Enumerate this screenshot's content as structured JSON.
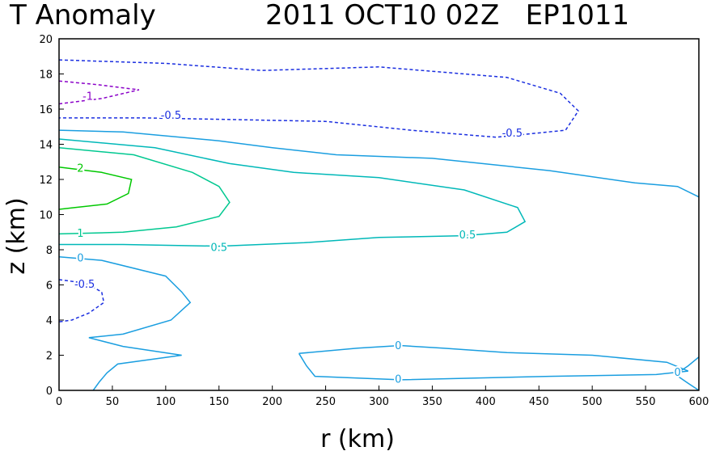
{
  "chart_data": {
    "type": "contour",
    "title_left": "T Anomaly",
    "title_right": "2011 OCT10 02Z   EP1011",
    "xlabel": "r (km)",
    "ylabel": "z (km)",
    "xlim": [
      0,
      600
    ],
    "ylim": [
      0,
      20
    ],
    "xticks": [
      0,
      50,
      100,
      150,
      200,
      250,
      300,
      350,
      400,
      450,
      500,
      550,
      600
    ],
    "yticks": [
      0,
      2,
      4,
      6,
      8,
      10,
      12,
      14,
      16,
      18,
      20
    ],
    "grid": false,
    "colors": {
      "-1": "#8a00c8",
      "-0.5": "#1a2ee0",
      "0": "#1a9ee0",
      "0.5": "#00b8b8",
      "1": "#00c890",
      "2": "#00c800"
    },
    "contours": [
      {
        "level": -0.5,
        "dashed": true,
        "points": [
          [
            0,
            18.8
          ],
          [
            100,
            18.6
          ],
          [
            190,
            18.2
          ],
          [
            300,
            18.4
          ],
          [
            420,
            17.8
          ],
          [
            470,
            16.9
          ],
          [
            487,
            15.9
          ],
          [
            475,
            14.8
          ],
          [
            410,
            14.4
          ],
          [
            330,
            14.8
          ],
          [
            250,
            15.3
          ],
          [
            170,
            15.4
          ],
          [
            80,
            15.5
          ],
          [
            0,
            15.5
          ]
        ]
      },
      {
        "level": -1,
        "dashed": true,
        "points": [
          [
            0,
            17.6
          ],
          [
            35,
            17.4
          ],
          [
            75,
            17.1
          ],
          [
            40,
            16.6
          ],
          [
            0,
            16.3
          ]
        ]
      },
      {
        "level": -0.5,
        "dashed": true,
        "points": [
          [
            0,
            6.3
          ],
          [
            25,
            6.1
          ],
          [
            40,
            5.6
          ],
          [
            42,
            5.0
          ],
          [
            28,
            4.4
          ],
          [
            12,
            4.0
          ],
          [
            0,
            3.9
          ]
        ]
      },
      {
        "level": 0,
        "dashed": false,
        "points": [
          [
            0,
            14.8
          ],
          [
            60,
            14.7
          ],
          [
            150,
            14.2
          ],
          [
            200,
            13.8
          ],
          [
            260,
            13.4
          ],
          [
            350,
            13.2
          ],
          [
            460,
            12.5
          ],
          [
            540,
            11.8
          ],
          [
            580,
            11.6
          ],
          [
            600,
            11.0
          ]
        ]
      },
      {
        "level": 0.5,
        "dashed": false,
        "points": [
          [
            0,
            14.3
          ],
          [
            90,
            13.8
          ],
          [
            160,
            12.9
          ],
          [
            220,
            12.4
          ],
          [
            300,
            12.1
          ],
          [
            380,
            11.4
          ],
          [
            430,
            10.4
          ],
          [
            437,
            9.6
          ],
          [
            420,
            9.0
          ],
          [
            380,
            8.8
          ],
          [
            300,
            8.7
          ],
          [
            230,
            8.4
          ],
          [
            150,
            8.2
          ],
          [
            60,
            8.3
          ],
          [
            0,
            8.3
          ]
        ]
      },
      {
        "level": 1,
        "dashed": false,
        "points": [
          [
            0,
            13.8
          ],
          [
            70,
            13.4
          ],
          [
            125,
            12.4
          ],
          [
            150,
            11.6
          ],
          [
            160,
            10.7
          ],
          [
            150,
            9.9
          ],
          [
            110,
            9.3
          ],
          [
            60,
            9.0
          ],
          [
            0,
            8.9
          ]
        ]
      },
      {
        "level": 2,
        "dashed": false,
        "points": [
          [
            0,
            12.7
          ],
          [
            40,
            12.4
          ],
          [
            68,
            12.0
          ],
          [
            65,
            11.2
          ],
          [
            45,
            10.6
          ],
          [
            15,
            10.4
          ],
          [
            0,
            10.3
          ]
        ]
      },
      {
        "level": 0,
        "dashed": false,
        "points": [
          [
            0,
            7.6
          ],
          [
            40,
            7.4
          ],
          [
            100,
            6.5
          ],
          [
            115,
            5.6
          ],
          [
            123,
            5.0
          ],
          [
            105,
            4.0
          ],
          [
            60,
            3.2
          ],
          [
            28,
            3.0
          ],
          [
            60,
            2.5
          ],
          [
            115,
            2.0
          ],
          [
            55,
            1.5
          ],
          [
            45,
            1.0
          ],
          [
            38,
            0.5
          ],
          [
            32,
            0
          ]
        ]
      },
      {
        "level": 0,
        "dashed": false,
        "points": [
          [
            225,
            2.1
          ],
          [
            280,
            2.4
          ],
          [
            320,
            2.55
          ],
          [
            360,
            2.4
          ],
          [
            420,
            2.15
          ],
          [
            500,
            2.0
          ],
          [
            570,
            1.6
          ],
          [
            590,
            1.1
          ],
          [
            560,
            0.9
          ],
          [
            460,
            0.8
          ],
          [
            320,
            0.6
          ],
          [
            240,
            0.8
          ],
          [
            232,
            1.4
          ],
          [
            225,
            2.1
          ]
        ]
      },
      {
        "level": 0,
        "dashed": false,
        "points": [
          [
            600,
            1.9
          ],
          [
            590,
            1.4
          ],
          [
            578,
            0.9
          ],
          [
            590,
            0.4
          ],
          [
            600,
            0
          ]
        ]
      }
    ],
    "labels": [
      {
        "text": "-1",
        "level": -1,
        "x": 27,
        "y": 16.7
      },
      {
        "text": "-0.5",
        "level": -0.5,
        "x": 105,
        "y": 15.6
      },
      {
        "text": "-0.5",
        "level": -0.5,
        "x": 425,
        "y": 14.6
      },
      {
        "text": "-0.5",
        "level": -0.5,
        "x": 24,
        "y": 6.0
      },
      {
        "text": "2",
        "level": 2,
        "x": 20,
        "y": 12.6
      },
      {
        "text": "1",
        "level": 1,
        "x": 20,
        "y": 8.9
      },
      {
        "text": "0.5",
        "level": 0.5,
        "x": 150,
        "y": 8.1
      },
      {
        "text": "0.5",
        "level": 0.5,
        "x": 383,
        "y": 8.8
      },
      {
        "text": "0",
        "level": 0,
        "x": 20,
        "y": 7.5
      },
      {
        "text": "0",
        "level": 0,
        "x": 318,
        "y": 2.5
      },
      {
        "text": "0",
        "level": 0,
        "x": 318,
        "y": 0.6
      },
      {
        "text": "0",
        "level": 0,
        "x": 580,
        "y": 1.0
      }
    ]
  }
}
